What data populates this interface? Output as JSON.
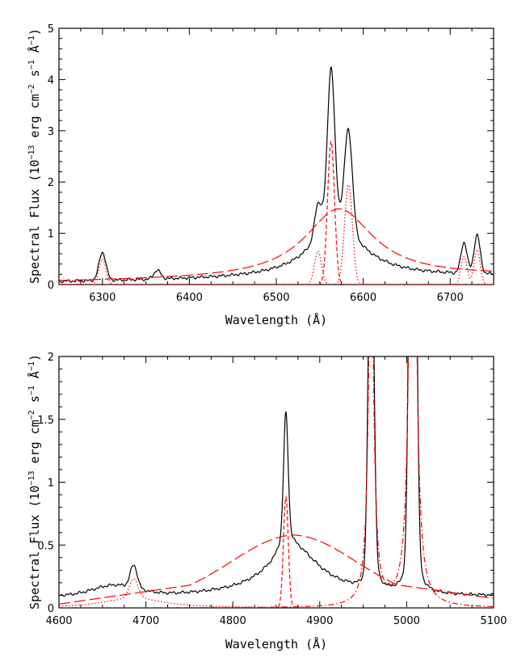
{
  "chart_data": [
    {
      "type": "line",
      "xlabel": "Wavelength (Å)",
      "ylabel_main": "Spectral Flux (10",
      "ylabel_exp1": "−13",
      "ylabel_mid": " erg cm",
      "ylabel_exp2": "−2",
      "ylabel_mid2": " s",
      "ylabel_exp3": "−1",
      "ylabel_mid3": " Å",
      "ylabel_exp4": "−1",
      "ylabel_end": ")",
      "xlim": [
        6250,
        6750
      ],
      "ylim": [
        0,
        5
      ],
      "x_ticks": [
        6300,
        6400,
        6500,
        6600,
        6700
      ],
      "x_tick_labels": [
        "6300",
        "6400",
        "6500",
        "6600",
        "6700"
      ],
      "y_ticks": [
        0,
        1,
        2,
        3,
        4,
        5
      ],
      "y_tick_labels": [
        "0",
        "1",
        "2",
        "3",
        "4",
        "5"
      ],
      "continuum": {
        "a": 0.05,
        "b": 0.12
      },
      "observed_lines": [
        {
          "center": 6300,
          "amp": 0.55,
          "sigma": 4
        },
        {
          "center": 6363,
          "amp": 0.17,
          "sigma": 4
        },
        {
          "center": 6548,
          "amp": 0.6,
          "sigma": 4
        },
        {
          "center": 6563,
          "amp": 2.6,
          "sigma": 4
        },
        {
          "center": 6583,
          "amp": 1.95,
          "sigma": 4.5
        },
        {
          "center": 6716,
          "amp": 0.6,
          "sigma": 3.5
        },
        {
          "center": 6731,
          "amp": 0.75,
          "sigma": 3.5
        }
      ],
      "observed_broad": [
        {
          "center": 6570,
          "amp": 0.95,
          "width": 38,
          "kind": "lorentz"
        },
        {
          "center": 6563,
          "amp": 0.6,
          "width": 9,
          "kind": "lorentz"
        }
      ],
      "series": [
        {
          "style": "solid",
          "color": "#000000",
          "components": "observed"
        },
        {
          "style": "longdash",
          "color": "#ff0000",
          "components": [
            {
              "center": 6572,
              "amp": 1.35,
              "width": 48,
              "kind": "lorentz"
            }
          ],
          "continuum": true
        },
        {
          "style": "dash",
          "color": "#ff0000",
          "components": [
            {
              "center": 6563,
              "amp": 2.8,
              "width": 4,
              "kind": "gauss"
            }
          ]
        },
        {
          "style": "dot",
          "color": "#ff0000",
          "components": [
            {
              "center": 6300,
              "amp": 0.5,
              "width": 4,
              "kind": "gauss"
            },
            {
              "center": 6548,
              "amp": 0.65,
              "width": 4,
              "kind": "gauss"
            },
            {
              "center": 6583,
              "amp": 1.95,
              "width": 4.5,
              "kind": "gauss"
            },
            {
              "center": 6716,
              "amp": 0.55,
              "width": 3.5,
              "kind": "gauss"
            },
            {
              "center": 6731,
              "amp": 0.68,
              "width": 3.5,
              "kind": "gauss"
            }
          ]
        }
      ]
    },
    {
      "type": "line",
      "xlabel": "Wavelength (Å)",
      "ylabel_main": "Spectral Flux (10",
      "ylabel_exp1": "−13",
      "ylabel_mid": " erg cm",
      "ylabel_exp2": "−2",
      "ylabel_mid2": " s",
      "ylabel_exp3": "−1",
      "ylabel_mid3": " Å",
      "ylabel_exp4": "−1",
      "ylabel_end": ")",
      "xlim": [
        4600,
        5100
      ],
      "ylim": [
        0,
        2
      ],
      "x_ticks": [
        4600,
        4700,
        4800,
        4900,
        5000,
        5100
      ],
      "x_tick_labels": [
        "4600",
        "4700",
        "4800",
        "4900",
        "5000",
        "5100"
      ],
      "y_ticks": [
        0,
        0.5,
        1,
        1.5,
        2
      ],
      "y_tick_labels": [
        "0",
        "0.5",
        "1",
        "1.5",
        "2"
      ],
      "continuum": {
        "a": 0.09,
        "b": 0.0
      },
      "observed_lines": [
        {
          "center": 4686,
          "amp": 0.18,
          "sigma": 4
        },
        {
          "center": 4861,
          "amp": 0.85,
          "sigma": 2.5
        },
        {
          "center": 4959,
          "amp": 3.0,
          "sigma": 3
        },
        {
          "center": 5007,
          "amp": 6.0,
          "sigma": 3.3
        }
      ],
      "observed_broad": [
        {
          "center": 4870,
          "amp": 0.38,
          "width": 38,
          "kind": "lorentz"
        },
        {
          "center": 4861,
          "amp": 0.25,
          "width": 6,
          "kind": "lorentz"
        },
        {
          "center": 4960,
          "amp": 0.4,
          "width": 5,
          "kind": "lorentz"
        },
        {
          "center": 5007,
          "amp": 0.8,
          "width": 5,
          "kind": "lorentz"
        },
        {
          "center": 4665,
          "amp": 0.08,
          "width": 25,
          "kind": "gauss"
        }
      ],
      "series": [
        {
          "style": "solid",
          "color": "#000000",
          "components": "observed"
        },
        {
          "style": "longdash",
          "color": "#ff0000",
          "components": [
            {
              "center": 4870,
              "amp": 0.48,
              "width": 40,
              "kind": "gaussbroad"
            }
          ],
          "linear": {
            "x0": 4600,
            "y0": 0.02,
            "peak_x": 4870,
            "peak_y": 0.2,
            "x1": 5100,
            "y1": 0.05
          }
        },
        {
          "style": "dash",
          "color": "#ff0000",
          "components": [
            {
              "center": 4861,
              "amp": 0.88,
              "width": 2.8,
              "kind": "gauss"
            }
          ]
        },
        {
          "style": "dot",
          "color": "#ff0000",
          "components": [
            {
              "center": 4686,
              "amp": 0.15,
              "width": 5,
              "kind": "gauss"
            },
            {
              "center": 4686,
              "amp": 0.08,
              "width": 40,
              "kind": "lorentz"
            }
          ]
        },
        {
          "style": "dashdot",
          "color": "#ff0000",
          "components": [
            {
              "center": 4959,
              "amp": 3.0,
              "width": 3.5,
              "kind": "lorentz"
            },
            {
              "center": 5007,
              "amp": 6.0,
              "width": 3.5,
              "kind": "lorentz"
            }
          ]
        }
      ]
    }
  ]
}
